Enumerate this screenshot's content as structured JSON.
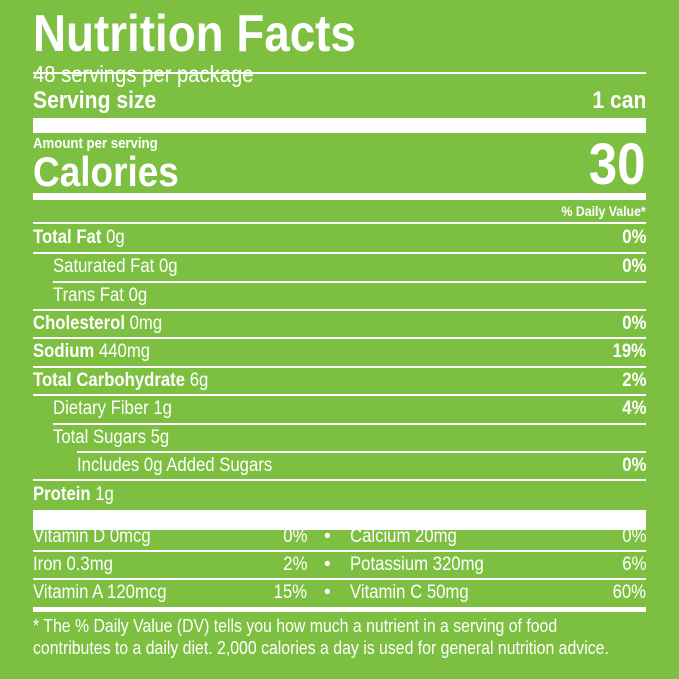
{
  "title": "Nutrition Facts",
  "servings_per_package": "48 servings per package",
  "serving_size_label": "Serving size",
  "serving_size_value": "1 can",
  "amount_per_serving": "Amount per serving",
  "calories_label": "Calories",
  "calories_value": "30",
  "daily_value_header": "% Daily Value*",
  "nutrients": [
    {
      "name": "Total Fat",
      "amount": "0g",
      "dv": "0%"
    },
    {
      "name": "Saturated Fat",
      "amount": "0g",
      "dv": "0%"
    },
    {
      "name": "Trans Fat",
      "amount": "0g",
      "dv": ""
    },
    {
      "name": "Cholesterol",
      "amount": "0mg",
      "dv": "0%"
    },
    {
      "name": "Sodium",
      "amount": "440mg",
      "dv": "19%"
    },
    {
      "name": "Total Carbohydrate",
      "amount": "6g",
      "dv": "2%"
    },
    {
      "name": "Dietary Fiber",
      "amount": "1g",
      "dv": "4%"
    },
    {
      "name": "Total Sugars",
      "amount": "5g",
      "dv": ""
    },
    {
      "name": "Includes 0g Added Sugars",
      "amount": "",
      "dv": "0%"
    },
    {
      "name": "Protein",
      "amount": "1g",
      "dv": ""
    }
  ],
  "vitamins": [
    {
      "left": "Vitamin D 0mcg",
      "left_dv": "0%",
      "right": "Calcium 20mg",
      "right_dv": "0%"
    },
    {
      "left": "Iron 0.3mg",
      "left_dv": "2%",
      "right": "Potassium 320mg",
      "right_dv": "6%"
    },
    {
      "left": "Vitamin A 120mcg",
      "left_dv": "15%",
      "right": "Vitamin C 50mg",
      "right_dv": "60%"
    }
  ],
  "bullet": "•",
  "footnote_line1": "* The % Daily Value (DV) tells you how much a nutrient in a serving of food",
  "footnote_line2": "contributes to a daily diet. 2,000 calories a day is used for general nutrition advice.",
  "colors": {
    "background": "#7dbf41",
    "text": "#ffffff"
  }
}
